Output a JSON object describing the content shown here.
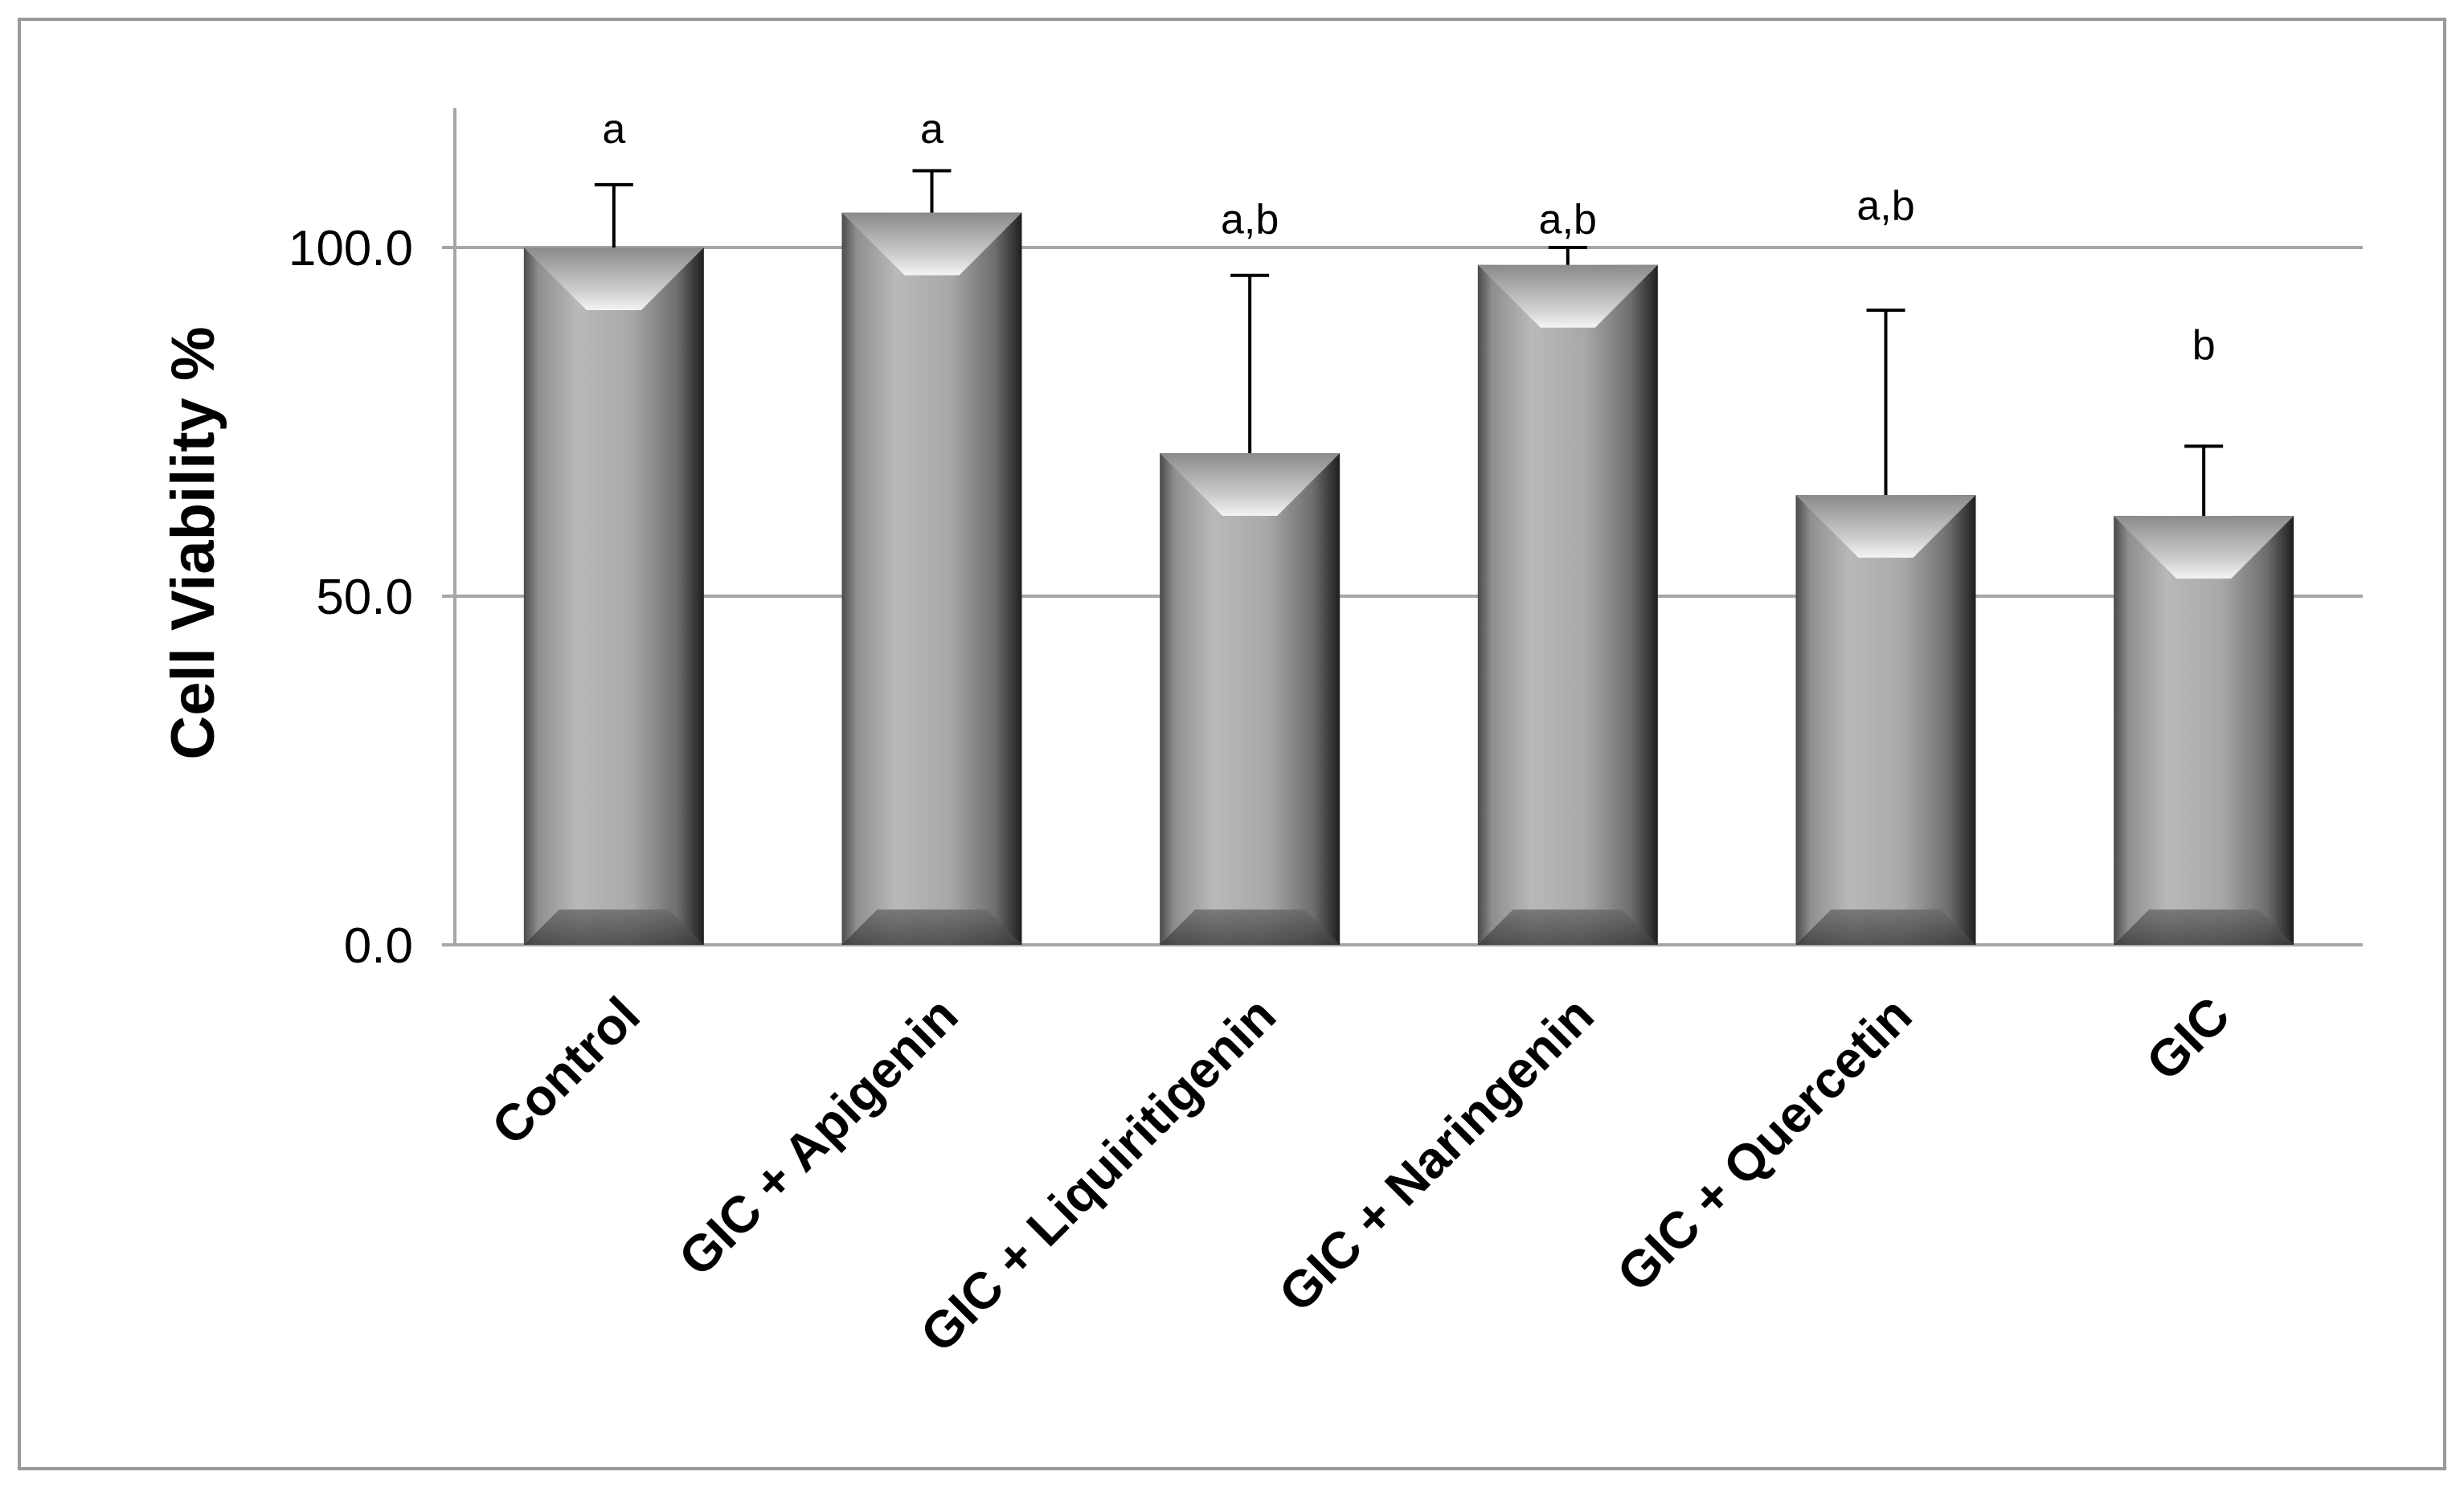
{
  "chart_data": {
    "type": "bar",
    "ylabel": "Cell Viability %",
    "xlabel": "",
    "title": "",
    "ylim": [
      0,
      120
    ],
    "yticks": [
      0,
      50,
      100
    ],
    "ytick_labels": [
      "0.0",
      "50.0",
      "100.0"
    ],
    "gridlines": [
      50,
      100
    ],
    "grid": true,
    "categories": [
      "Control",
      "GIC + Apigenin",
      "GIC + Liquiritigenin",
      "GIC + Naringenin",
      "GIC + Quercetin",
      "GIC"
    ],
    "values": [
      100.0,
      105.0,
      70.5,
      97.5,
      64.5,
      61.5
    ],
    "error_upper": [
      9.0,
      6.0,
      25.5,
      2.5,
      26.5,
      10.0
    ],
    "significance_labels": [
      "a",
      "a",
      "a,b",
      "a,b",
      "a,b",
      "b"
    ],
    "bar_color": "#9a9a9a",
    "axis_color": "#a6a6a6"
  }
}
